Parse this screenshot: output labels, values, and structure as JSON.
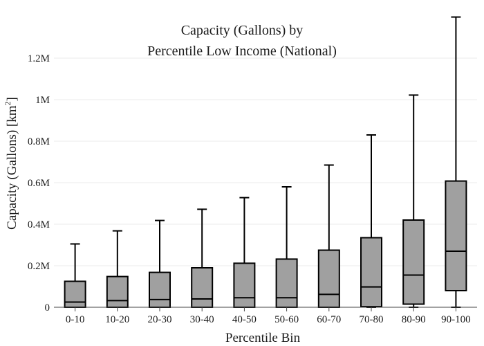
{
  "chart_data": {
    "type": "box",
    "title_lines": [
      "Capacity (Gallons) by",
      "Percentile Low Income (National)"
    ],
    "xlabel": "Percentile Bin",
    "ylabel": "Capacity (Gallons)  [km",
    "ylabel_superscript": "2",
    "ylabel_suffix": "]",
    "ylim": [
      0,
      1400000
    ],
    "yticks": [
      {
        "value": 0,
        "label": "0"
      },
      {
        "value": 200000,
        "label": "0.2M"
      },
      {
        "value": 400000,
        "label": "0.4M"
      },
      {
        "value": 600000,
        "label": "0.6M"
      },
      {
        "value": 800000,
        "label": "0.8M"
      },
      {
        "value": 1000000,
        "label": "1M"
      },
      {
        "value": 1200000,
        "label": "1.2M"
      }
    ],
    "grid": true,
    "box_color": "#a0a0a0",
    "categories": [
      "0-10",
      "10-20",
      "20-30",
      "30-40",
      "40-50",
      "50-60",
      "60-70",
      "70-80",
      "80-90",
      "90-100"
    ],
    "boxes": [
      {
        "min": 0,
        "q1": 0,
        "median": 25000,
        "q3": 125000,
        "max": 305000
      },
      {
        "min": 0,
        "q1": 0,
        "median": 32000,
        "q3": 148000,
        "max": 368000
      },
      {
        "min": 0,
        "q1": 0,
        "median": 37000,
        "q3": 168000,
        "max": 418000
      },
      {
        "min": 0,
        "q1": 0,
        "median": 40000,
        "q3": 190000,
        "max": 472000
      },
      {
        "min": 0,
        "q1": 0,
        "median": 46000,
        "q3": 212000,
        "max": 528000
      },
      {
        "min": 0,
        "q1": 0,
        "median": 46000,
        "q3": 232000,
        "max": 580000
      },
      {
        "min": 0,
        "q1": 0,
        "median": 62000,
        "q3": 275000,
        "max": 685000
      },
      {
        "min": 0,
        "q1": 3000,
        "median": 98000,
        "q3": 335000,
        "max": 830000
      },
      {
        "min": 0,
        "q1": 15000,
        "median": 155000,
        "q3": 420000,
        "max": 1022000
      },
      {
        "min": 0,
        "q1": 80000,
        "median": 270000,
        "q3": 608000,
        "max": 1398000
      }
    ]
  }
}
